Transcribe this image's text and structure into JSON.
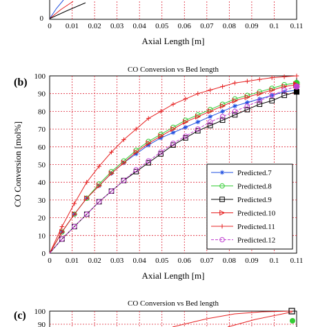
{
  "chart_data": [
    {
      "panel": "",
      "type": "line",
      "title": "",
      "xlabel": "Axial Length [m]",
      "ylabel": "",
      "xlim": [
        0,
        0.11
      ],
      "x_ticks": [
        "0",
        "0.01",
        "0.02",
        "0.03",
        "0.04",
        "0.05",
        "0.06",
        "0.07",
        "0.08",
        "0.09",
        "0.1",
        "0.11"
      ],
      "y_ticks": [
        "0"
      ],
      "partial": "bottom portion only visible"
    },
    {
      "panel": "(b)",
      "type": "line",
      "title": "CO Conversion vs Bed length",
      "xlabel": "Axial Length [m]",
      "ylabel": "CO Conversion [mol%]",
      "xlim": [
        0,
        0.11
      ],
      "ylim": [
        0,
        100
      ],
      "grid": true,
      "legend_position": "lower-right",
      "x_ticks": [
        "0",
        "0.01",
        "0.02",
        "0.03",
        "0.04",
        "0.05",
        "0.06",
        "0.07",
        "0.08",
        "0.09",
        "0.1",
        "0.11"
      ],
      "y_ticks": [
        "0",
        "10",
        "20",
        "30",
        "40",
        "50",
        "60",
        "70",
        "80",
        "90",
        "100"
      ],
      "x": [
        0,
        0.0055,
        0.011,
        0.0165,
        0.022,
        0.0275,
        0.033,
        0.0385,
        0.044,
        0.0495,
        0.055,
        0.0605,
        0.066,
        0.0715,
        0.077,
        0.0825,
        0.088,
        0.0935,
        0.099,
        0.1045,
        0.11
      ],
      "series": [
        {
          "name": "Predicted.7",
          "color": "#1f4fe0",
          "marker": "star",
          "values": [
            0,
            12,
            22,
            31,
            38,
            45,
            51,
            56,
            61,
            65,
            68,
            71,
            74,
            77,
            80,
            83,
            85,
            87,
            89,
            91,
            92
          ]
        },
        {
          "name": "Predicted.8",
          "color": "#33cc33",
          "marker": "circle",
          "values": [
            0,
            12,
            22,
            31,
            39,
            46,
            52,
            58,
            63,
            67,
            71,
            75,
            78,
            81,
            84,
            87,
            89,
            91,
            93,
            95,
            96
          ]
        },
        {
          "name": "Predicted.9",
          "color": "#000000",
          "marker": "square",
          "values": [
            0,
            8,
            15,
            22,
            29,
            35,
            41,
            46,
            51,
            56,
            61,
            65,
            69,
            72,
            75,
            78,
            81,
            84,
            86,
            89,
            91
          ]
        },
        {
          "name": "Predicted.10",
          "color": "#e62020",
          "marker": "triangle",
          "values": [
            0,
            12,
            22,
            31,
            38,
            45,
            51,
            57,
            62,
            66,
            70,
            74,
            77,
            80,
            83,
            86,
            88,
            90,
            92,
            94,
            95
          ]
        },
        {
          "name": "Predicted.11",
          "color": "#e62020",
          "marker": "plus",
          "values": [
            0,
            15,
            28,
            40,
            49,
            57,
            64,
            70,
            76,
            80,
            84,
            87,
            90,
            92,
            94,
            96,
            97,
            98,
            99,
            99.5,
            100
          ]
        },
        {
          "name": "Predicted.12",
          "color": "#c040d0",
          "marker": "circle-dashed",
          "values": [
            0,
            8,
            15,
            22,
            29,
            35,
            41,
            47,
            52,
            57,
            62,
            66,
            70,
            74,
            77,
            80,
            83,
            86,
            89,
            92,
            94
          ]
        }
      ]
    },
    {
      "panel": "(c)",
      "type": "line",
      "title": "CO Conversion vs Bed length",
      "ylim_visible_top": 100,
      "y_ticks": [
        "100",
        "90"
      ],
      "partial": "top portion only visible"
    }
  ]
}
